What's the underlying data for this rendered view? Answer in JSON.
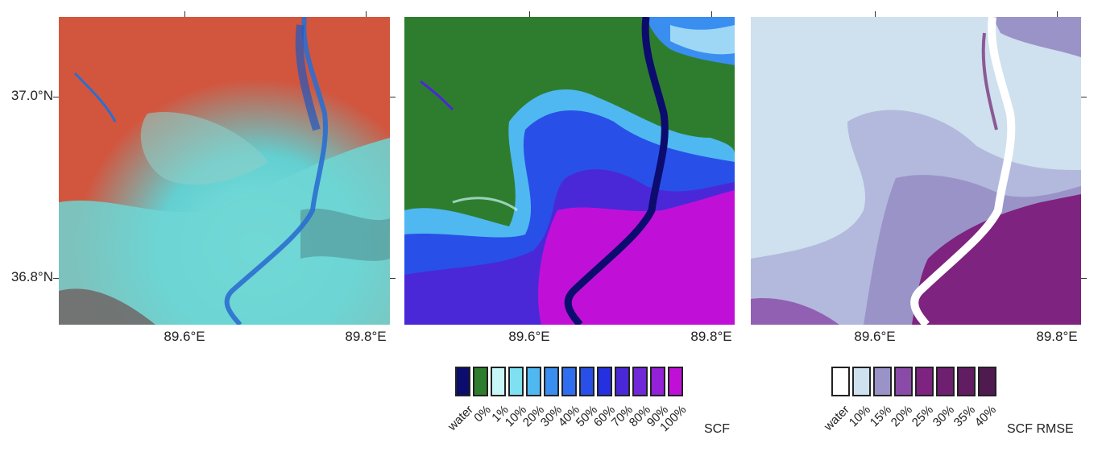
{
  "axes": {
    "y_labels": [
      "37.0°N",
      "36.8°N"
    ],
    "x_labels": [
      "89.6°E",
      "89.8°E"
    ]
  },
  "panels": [
    {
      "name": "false-color-composite"
    },
    {
      "name": "snow-cover-fraction-map"
    },
    {
      "name": "snow-cover-fraction-rmse-map"
    }
  ],
  "legend_scf": {
    "title": "SCF",
    "items": [
      {
        "label": "water",
        "color": "#0c0c6e"
      },
      {
        "label": "0%",
        "color": "#2e7d2e"
      },
      {
        "label": "1%",
        "color": "#c8f7f7"
      },
      {
        "label": "10%",
        "color": "#7ee0f0"
      },
      {
        "label": "20%",
        "color": "#4fb8f0"
      },
      {
        "label": "30%",
        "color": "#3a8ef0"
      },
      {
        "label": "40%",
        "color": "#2f6ef0"
      },
      {
        "label": "50%",
        "color": "#2850e8"
      },
      {
        "label": "60%",
        "color": "#2530e0"
      },
      {
        "label": "70%",
        "color": "#4a28d8"
      },
      {
        "label": "80%",
        "color": "#7028d8"
      },
      {
        "label": "90%",
        "color": "#9420d8"
      },
      {
        "label": "100%",
        "color": "#c010d8"
      }
    ]
  },
  "legend_rmse": {
    "title": "SCF RMSE",
    "items": [
      {
        "label": "water",
        "color": "#ffffff"
      },
      {
        "label": "10%",
        "color": "#cfe0ee"
      },
      {
        "label": "15%",
        "color": "#9a93c8"
      },
      {
        "label": "20%",
        "color": "#8a4aa8"
      },
      {
        "label": "25%",
        "color": "#7e2380"
      },
      {
        "label": "30%",
        "color": "#6e1f70"
      },
      {
        "label": "35%",
        "color": "#621d62"
      },
      {
        "label": "40%",
        "color": "#4e1a50"
      }
    ]
  }
}
